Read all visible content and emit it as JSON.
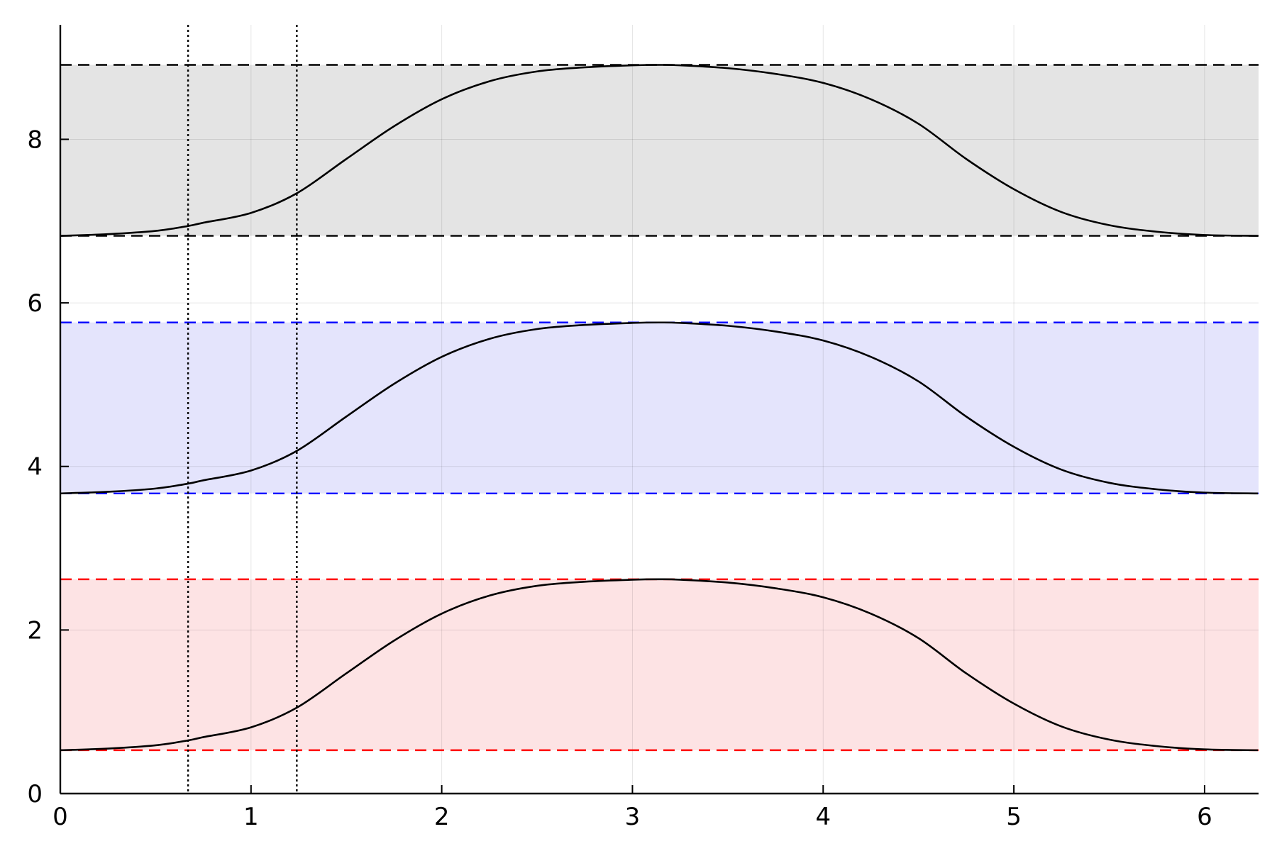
{
  "chart_data": {
    "type": "line",
    "title": "",
    "xlabel": "",
    "ylabel": "",
    "xlim": [
      0,
      6.283
    ],
    "ylim": [
      0,
      9.4
    ],
    "x_ticks": [
      0,
      1,
      2,
      3,
      4,
      5,
      6
    ],
    "x_tick_labels": [
      "0",
      "1",
      "2",
      "3",
      "4",
      "5",
      "6"
    ],
    "y_ticks": [
      0,
      2,
      4,
      6,
      8
    ],
    "y_tick_labels": [
      "0",
      "2",
      "4",
      "6",
      "8"
    ],
    "grid": true,
    "legend": "none",
    "bands": [
      {
        "low": 0.53,
        "high": 2.62,
        "fill_color": "#fde3e4",
        "line_color": "#ff0000",
        "line_style": "dashed"
      },
      {
        "low": 3.67,
        "high": 5.76,
        "fill_color": "#e4e4fc",
        "line_color": "#0000ff",
        "line_style": "dashed"
      },
      {
        "low": 6.82,
        "high": 8.91,
        "fill_color": "#e4e4e4",
        "line_color": "#000000",
        "line_style": "dashed"
      }
    ],
    "vertical_lines": [
      {
        "x": 0.67,
        "style": "dotted",
        "color": "#000000"
      },
      {
        "x": 1.24,
        "style": "dotted",
        "color": "#000000"
      }
    ],
    "series": [
      {
        "color": "#000000",
        "x": [
          0,
          0.25,
          0.5,
          0.67,
          0.75,
          1.0,
          1.24,
          1.5,
          1.75,
          2.0,
          2.25,
          2.5,
          2.75,
          3.0,
          3.14,
          3.25,
          3.5,
          3.75,
          4.0,
          4.25,
          4.5,
          4.75,
          5.0,
          5.25,
          5.5,
          5.75,
          6.0,
          6.28
        ],
        "values": [
          0.53,
          0.55,
          0.59,
          0.65,
          0.69,
          0.81,
          1.05,
          1.47,
          1.87,
          2.2,
          2.42,
          2.54,
          2.59,
          2.615,
          2.62,
          2.615,
          2.58,
          2.51,
          2.4,
          2.2,
          1.9,
          1.47,
          1.1,
          0.82,
          0.66,
          0.58,
          0.54,
          0.53
        ]
      },
      {
        "color": "#000000",
        "x": [
          0,
          0.25,
          0.5,
          0.67,
          0.75,
          1.0,
          1.24,
          1.5,
          1.75,
          2.0,
          2.25,
          2.5,
          2.75,
          3.0,
          3.14,
          3.25,
          3.5,
          3.75,
          4.0,
          4.25,
          4.5,
          4.75,
          5.0,
          5.25,
          5.5,
          5.75,
          6.0,
          6.28
        ],
        "values": [
          3.67,
          3.69,
          3.73,
          3.79,
          3.83,
          3.95,
          4.19,
          4.61,
          5.01,
          5.34,
          5.56,
          5.68,
          5.73,
          5.755,
          5.76,
          5.755,
          5.72,
          5.65,
          5.54,
          5.34,
          5.04,
          4.61,
          4.24,
          3.96,
          3.8,
          3.72,
          3.68,
          3.67
        ]
      },
      {
        "color": "#000000",
        "x": [
          0,
          0.25,
          0.5,
          0.67,
          0.75,
          1.0,
          1.24,
          1.5,
          1.75,
          2.0,
          2.25,
          2.5,
          2.75,
          3.0,
          3.14,
          3.25,
          3.5,
          3.75,
          4.0,
          4.25,
          4.5,
          4.75,
          5.0,
          5.25,
          5.5,
          5.75,
          6.0,
          6.28
        ],
        "values": [
          6.82,
          6.84,
          6.88,
          6.94,
          6.98,
          7.1,
          7.34,
          7.76,
          8.16,
          8.49,
          8.71,
          8.83,
          8.88,
          8.905,
          8.91,
          8.905,
          8.87,
          8.8,
          8.69,
          8.49,
          8.19,
          7.76,
          7.39,
          7.11,
          6.95,
          6.87,
          6.83,
          6.82
        ]
      }
    ]
  }
}
